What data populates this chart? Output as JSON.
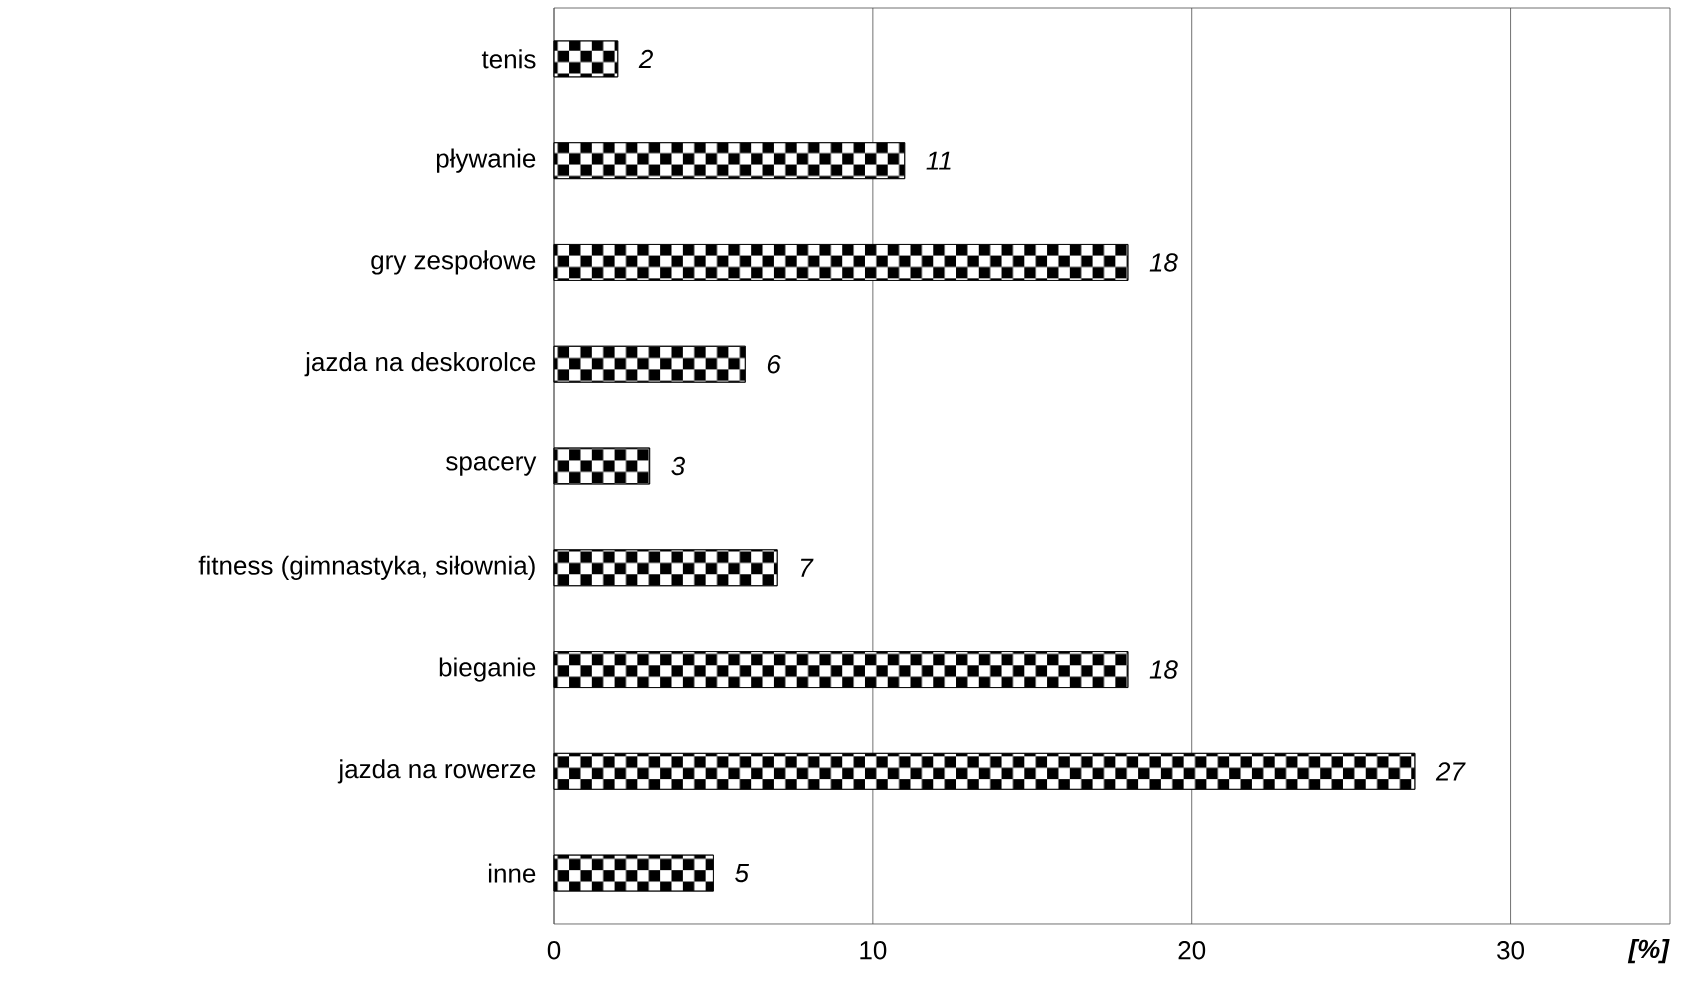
{
  "chart_data": {
    "type": "bar",
    "orientation": "horizontal",
    "categories": [
      "tenis",
      "pływanie",
      "gry zespołowe",
      "jazda na deskorolce",
      "spacery",
      "fitness (gimnastyka, siłownia)",
      "bieganie",
      "jazda na rowerze",
      "inne"
    ],
    "values": [
      2,
      11,
      18,
      6,
      3,
      7,
      18,
      27,
      5
    ],
    "color": "#000000",
    "xlim": [
      0,
      35
    ],
    "xticks": [
      0,
      10,
      20,
      30
    ],
    "xlabel": "[%]",
    "grid": "x",
    "data_labels": true
  }
}
